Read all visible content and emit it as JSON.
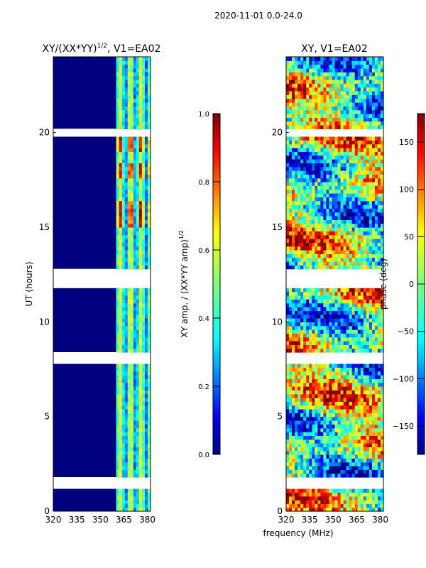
{
  "suptitle": "2020-11-01 0.0-24.0",
  "shared_xlabel": "frequency (MHz)",
  "colormap": [
    "#00007f",
    "#0000ff",
    "#007fff",
    "#00ffff",
    "#7fff7f",
    "#ffff00",
    "#ff7f00",
    "#ff0000",
    "#7f0000"
  ],
  "chart_data": [
    {
      "type": "heatmap",
      "title_main": "XY/(XX*YY)",
      "title_sup": "1/2",
      "title_tail": ", V1=EA02",
      "xlabel": "",
      "ylabel": "UT (hours)",
      "xlim": [
        320,
        382
      ],
      "ylim": [
        0,
        24
      ],
      "xticks": [
        "320",
        "335",
        "350",
        "365",
        "380"
      ],
      "yticks": [
        "0",
        "5",
        "10",
        "15",
        "20"
      ],
      "value_range": [
        0.0,
        1.0
      ],
      "flagged_rows_hours": [
        1.4,
        1.5,
        1.6,
        8.0,
        8.2,
        12.0,
        12.1,
        12.2,
        12.5,
        12.6,
        20.0,
        20.1
      ],
      "colorbar": {
        "label_main": "XY amp. / (XX*YY amp)",
        "label_sup": "1/2",
        "ticks": [
          "0.0",
          "0.2",
          "0.4",
          "0.6",
          "0.8",
          "1.0"
        ],
        "range": [
          0.0,
          1.0
        ]
      }
    },
    {
      "type": "heatmap",
      "title_main": "XY, V1=EA02",
      "xlabel": "frequency (MHz)",
      "ylabel": "",
      "xlim": [
        320,
        382
      ],
      "ylim": [
        0,
        24
      ],
      "xticks": [
        "320",
        "335",
        "350",
        "365",
        "380"
      ],
      "yticks": [
        "0",
        "5",
        "10",
        "15",
        "20"
      ],
      "value_range": [
        -180,
        180
      ],
      "flagged_rows_hours": [
        1.4,
        1.5,
        1.6,
        8.0,
        8.2,
        12.0,
        12.1,
        12.2,
        12.5,
        12.6,
        20.0,
        20.1
      ],
      "colorbar": {
        "label_main": "phase (deg)",
        "ticks": [
          "−150",
          "−100",
          "−50",
          "0",
          "50",
          "100",
          "150"
        ],
        "range": [
          -180,
          180
        ]
      }
    }
  ]
}
